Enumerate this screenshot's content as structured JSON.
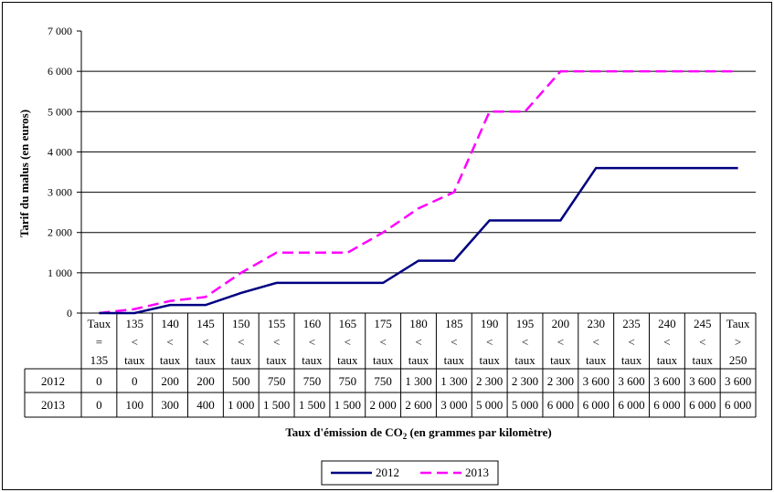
{
  "chart_data": {
    "type": "line",
    "title": "",
    "ylabel": "Tarif du malus (en euros)",
    "xlabel_main": "Taux d'émission de CO",
    "xlabel_sub": "2",
    "xlabel_rest": " (en grammes par kilomètre)",
    "ylim": [
      0,
      7000
    ],
    "yticks": [
      0,
      1000,
      2000,
      3000,
      4000,
      5000,
      6000,
      7000
    ],
    "ytick_labels": [
      "0",
      "1 000",
      "2 000",
      "3 000",
      "4 000",
      "5 000",
      "6 000",
      "7 000"
    ],
    "grid": true,
    "legend_position": "bottom",
    "categories": [
      [
        "Taux",
        "=",
        "135"
      ],
      [
        "135",
        "<",
        "taux"
      ],
      [
        "140",
        "<",
        "taux"
      ],
      [
        "145",
        "<",
        "taux"
      ],
      [
        "150",
        "<",
        "taux"
      ],
      [
        "155",
        "<",
        "taux"
      ],
      [
        "160",
        "<",
        "taux"
      ],
      [
        "165",
        "<",
        "taux"
      ],
      [
        "175",
        "<",
        "taux"
      ],
      [
        "180",
        "<",
        "taux"
      ],
      [
        "185",
        "<",
        "taux"
      ],
      [
        "190",
        "<",
        "taux"
      ],
      [
        "195",
        "<",
        "taux"
      ],
      [
        "200",
        "<",
        "taux"
      ],
      [
        "230",
        "<",
        "taux"
      ],
      [
        "235",
        "<",
        "taux"
      ],
      [
        "240",
        "<",
        "taux"
      ],
      [
        "245",
        "<",
        "taux"
      ],
      [
        "Taux",
        ">",
        "250"
      ]
    ],
    "series": [
      {
        "name": "2012",
        "color": "#000080",
        "dash": "solid",
        "values": [
          0,
          0,
          200,
          200,
          500,
          750,
          750,
          750,
          750,
          1300,
          1300,
          2300,
          2300,
          2300,
          3600,
          3600,
          3600,
          3600,
          3600
        ],
        "labels": [
          "0",
          "0",
          "200",
          "200",
          "500",
          "750",
          "750",
          "750",
          "750",
          "1 300",
          "1 300",
          "2 300",
          "2 300",
          "2 300",
          "3 600",
          "3 600",
          "3 600",
          "3 600",
          "3 600"
        ]
      },
      {
        "name": "2013",
        "color": "#FF00FF",
        "dash": "dashed",
        "values": [
          0,
          100,
          300,
          400,
          1000,
          1500,
          1500,
          1500,
          2000,
          2600,
          3000,
          5000,
          5000,
          6000,
          6000,
          6000,
          6000,
          6000,
          6000
        ],
        "labels": [
          "0",
          "100",
          "300",
          "400",
          "1 000",
          "1 500",
          "1 500",
          "1 500",
          "2 000",
          "2 600",
          "3 000",
          "5 000",
          "5 000",
          "6 000",
          "6 000",
          "6 000",
          "6 000",
          "6 000",
          "6 000"
        ]
      }
    ]
  }
}
